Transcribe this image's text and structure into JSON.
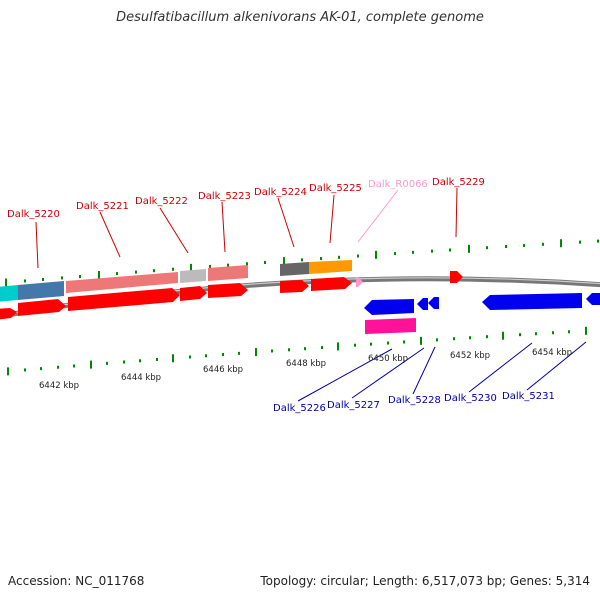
{
  "title": "Desulfatibacillum alkenivorans AK-01, complete genome",
  "footer": {
    "accession": "Accession: NC_011768",
    "topology": "Topology: circular; Length: 6,517,073 bp; Genes: 5,314"
  },
  "colors": {
    "forward_cds": "#ff0000",
    "reverse_cds": "#0000ee",
    "rna": "#ff99cc",
    "forward_label": "#cc0000",
    "reverse_label": "#0000aa",
    "backbone": "#888888",
    "tick": "#008800"
  },
  "scale": {
    "ticks": [
      {
        "label": "6442 kbp"
      },
      {
        "label": "6444 kbp"
      },
      {
        "label": "6446 kbp"
      },
      {
        "label": "6448 kbp"
      },
      {
        "label": "6450 kbp"
      },
      {
        "label": "6452 kbp"
      },
      {
        "label": "6454 kbp"
      }
    ]
  },
  "forward_genes": [
    {
      "label": "Dalk_5220"
    },
    {
      "label": "Dalk_5221"
    },
    {
      "label": "Dalk_5222"
    },
    {
      "label": "Dalk_5223"
    },
    {
      "label": "Dalk_5224"
    },
    {
      "label": "Dalk_5225"
    },
    {
      "label": "Dalk_R0066"
    },
    {
      "label": "Dalk_5229"
    }
  ],
  "reverse_genes": [
    {
      "label": "Dalk_5226"
    },
    {
      "label": "Dalk_5227"
    },
    {
      "label": "Dalk_5228"
    },
    {
      "label": "Dalk_5230"
    },
    {
      "label": "Dalk_5231"
    }
  ]
}
